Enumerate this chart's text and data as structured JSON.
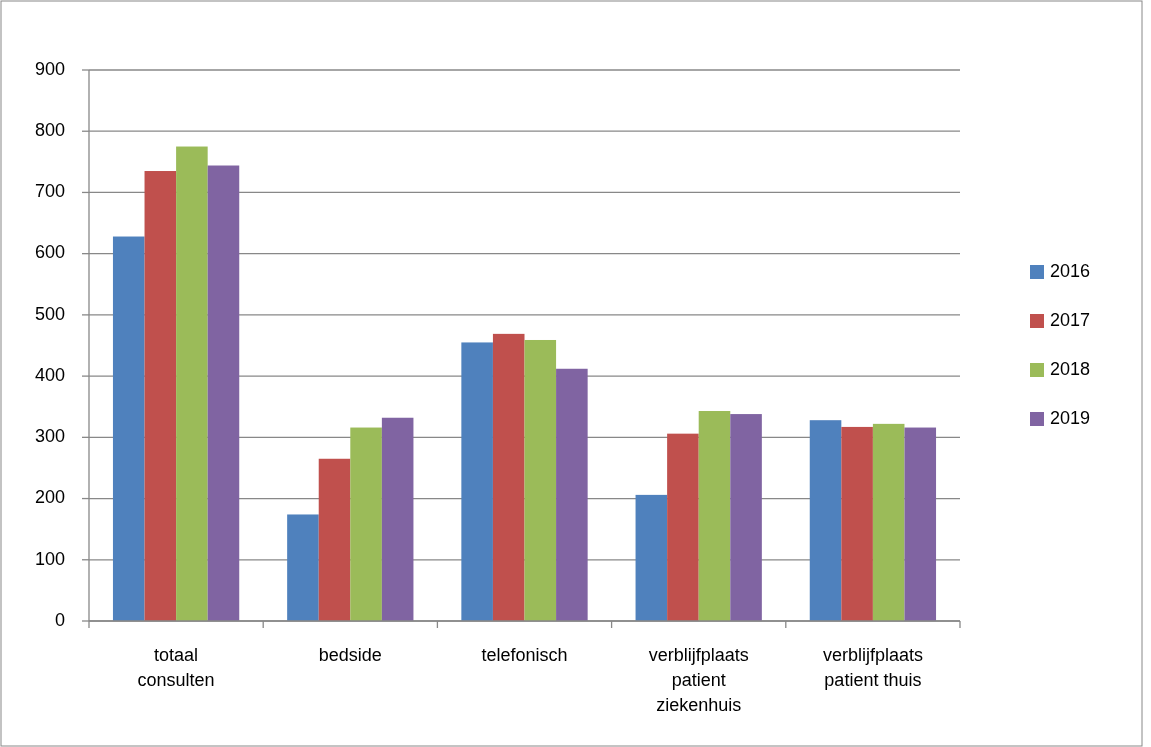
{
  "chart_data": {
    "type": "bar",
    "categories": [
      "totaal consulten",
      "bedside",
      "telefonisch",
      "verblijfplaats patient ziekenhuis",
      "verblijfplaats patient thuis"
    ],
    "series": [
      {
        "name": "2016",
        "color": "#4f81bd",
        "values": [
          628,
          174,
          455,
          206,
          328
        ]
      },
      {
        "name": "2017",
        "color": "#c0504d",
        "values": [
          735,
          265,
          469,
          306,
          317
        ]
      },
      {
        "name": "2018",
        "color": "#9bbb59",
        "values": [
          775,
          316,
          459,
          343,
          322
        ]
      },
      {
        "name": "2019",
        "color": "#8064a2",
        "values": [
          744,
          332,
          412,
          338,
          316
        ]
      }
    ],
    "ylim": [
      0,
      900
    ],
    "yticks": [
      0,
      100,
      200,
      300,
      400,
      500,
      600,
      700,
      800,
      900
    ],
    "grid": "y",
    "legend": "right"
  }
}
